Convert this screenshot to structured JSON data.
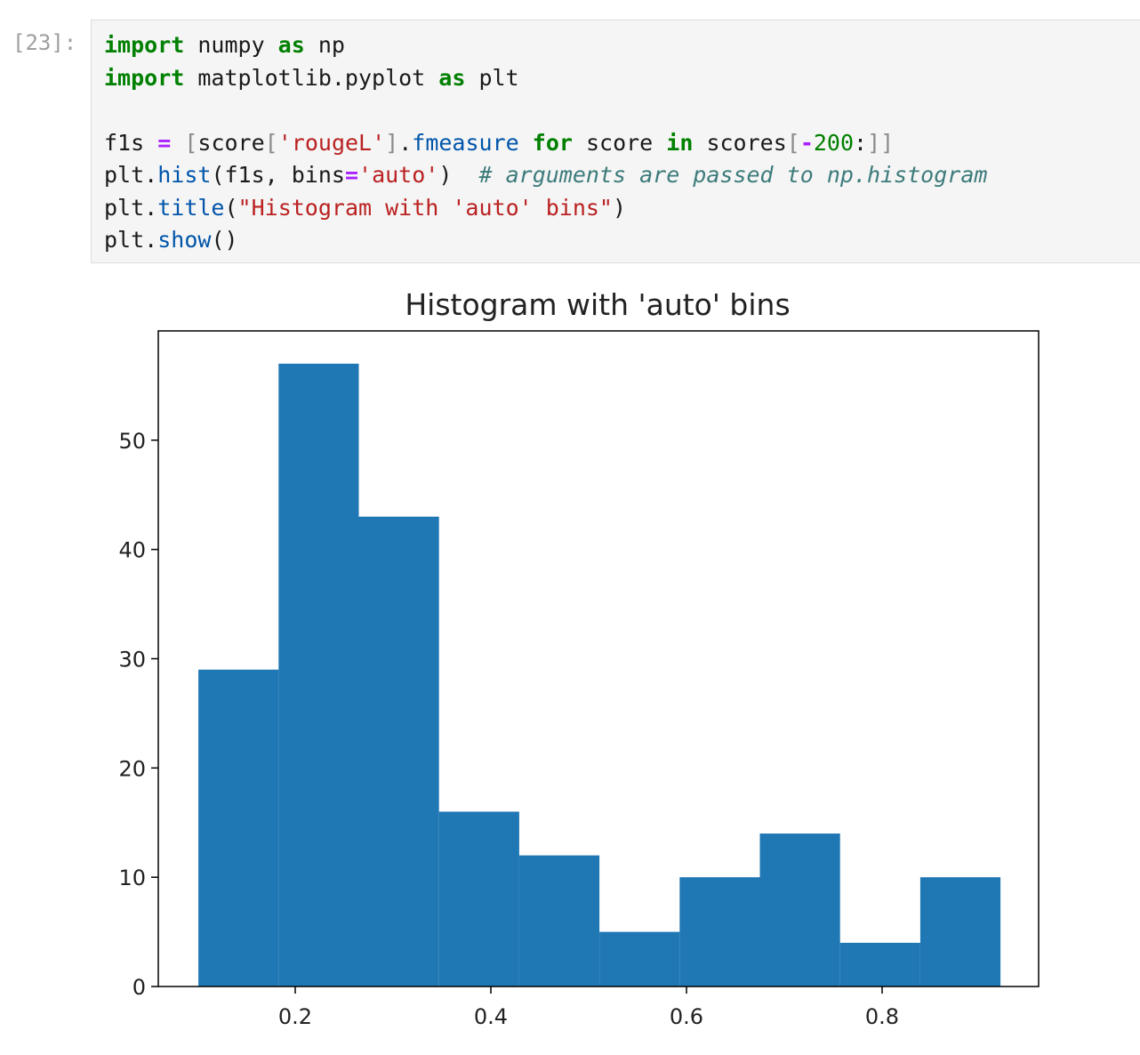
{
  "cell": {
    "prompt": "[23]:",
    "lines": [
      [
        {
          "t": "import",
          "c": "kw"
        },
        {
          "t": " numpy ",
          "c": ""
        },
        {
          "t": "as",
          "c": "kw"
        },
        {
          "t": " np",
          "c": ""
        }
      ],
      [
        {
          "t": "import",
          "c": "kw"
        },
        {
          "t": " matplotlib.pyplot ",
          "c": ""
        },
        {
          "t": "as",
          "c": "kw"
        },
        {
          "t": " plt",
          "c": ""
        }
      ],
      [],
      [
        {
          "t": "f1s ",
          "c": ""
        },
        {
          "t": "=",
          "c": "op"
        },
        {
          "t": " ",
          "c": ""
        },
        {
          "t": "[",
          "c": "brk"
        },
        {
          "t": "score",
          "c": ""
        },
        {
          "t": "[",
          "c": "brk"
        },
        {
          "t": "'rougeL'",
          "c": "str"
        },
        {
          "t": "]",
          "c": "brk"
        },
        {
          "t": ".",
          "c": ""
        },
        {
          "t": "fmeasure",
          "c": "attr"
        },
        {
          "t": " ",
          "c": ""
        },
        {
          "t": "for",
          "c": "kw"
        },
        {
          "t": " score ",
          "c": ""
        },
        {
          "t": "in",
          "c": "kw"
        },
        {
          "t": " scores",
          "c": ""
        },
        {
          "t": "[",
          "c": "brk"
        },
        {
          "t": "-",
          "c": "op"
        },
        {
          "t": "200",
          "c": "num"
        },
        {
          "t": ":",
          "c": ""
        },
        {
          "t": "]]",
          "c": "brk"
        }
      ],
      [
        {
          "t": "plt",
          "c": ""
        },
        {
          "t": ".",
          "c": ""
        },
        {
          "t": "hist",
          "c": "attr"
        },
        {
          "t": "(f1s, bins",
          "c": ""
        },
        {
          "t": "=",
          "c": "op"
        },
        {
          "t": "'auto'",
          "c": "str"
        },
        {
          "t": ")  ",
          "c": ""
        },
        {
          "t": "# arguments are passed to np.histogram",
          "c": "cmt"
        }
      ],
      [
        {
          "t": "plt",
          "c": ""
        },
        {
          "t": ".",
          "c": ""
        },
        {
          "t": "title",
          "c": "attr"
        },
        {
          "t": "(",
          "c": ""
        },
        {
          "t": "\"Histogram with 'auto' bins\"",
          "c": "str"
        },
        {
          "t": ")",
          "c": ""
        }
      ],
      [
        {
          "t": "plt",
          "c": ""
        },
        {
          "t": ".",
          "c": ""
        },
        {
          "t": "show",
          "c": "attr"
        },
        {
          "t": "()",
          "c": ""
        }
      ]
    ]
  },
  "chart_data": {
    "type": "bar",
    "title": "Histogram with 'auto' bins",
    "xlabel": "",
    "ylabel": "",
    "bin_edges": [
      0.101,
      0.183,
      0.265,
      0.347,
      0.429,
      0.511,
      0.593,
      0.675,
      0.757,
      0.839,
      0.921
    ],
    "values": [
      29,
      57,
      43,
      16,
      12,
      5,
      10,
      14,
      4,
      10
    ],
    "xlim": [
      0.06,
      0.96
    ],
    "ylim": [
      0,
      60
    ],
    "xticks": [
      0.2,
      0.4,
      0.6,
      0.8
    ],
    "xtick_labels": [
      "0.2",
      "0.4",
      "0.6",
      "0.8"
    ],
    "yticks": [
      0,
      10,
      20,
      30,
      40,
      50
    ],
    "ytick_labels": [
      "0",
      "10",
      "20",
      "30",
      "40",
      "50"
    ],
    "bar_color": "#1f77b4",
    "grid": false
  }
}
